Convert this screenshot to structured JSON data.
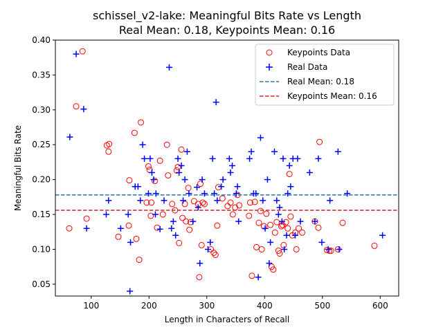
{
  "chart_data": {
    "type": "scatter",
    "title": [
      "schissel_v2-lake: Meaningful Bits Rate vs Length",
      "Real Mean: 0.18, Keypoints Mean: 0.16"
    ],
    "xlabel": "Length in Characters of Recall",
    "ylabel": "Meaningful Bits Rate",
    "xlim": [
      38,
      632
    ],
    "ylim": [
      0.033,
      0.4
    ],
    "xticks": [
      100,
      200,
      300,
      400,
      500,
      600
    ],
    "yticks": [
      0.05,
      0.1,
      0.15,
      0.2,
      0.25,
      0.3,
      0.35,
      0.4
    ],
    "ytick_labels": [
      "0.05",
      "0.10",
      "0.15",
      "0.20",
      "0.25",
      "0.30",
      "0.35",
      "0.40"
    ],
    "legend_position": "top-right",
    "grid": false,
    "series": [
      {
        "name": "Keypoints Data",
        "marker": "open-circle",
        "color": "#ff0000",
        "points": [
          [
            62,
            0.13
          ],
          [
            74,
            0.305
          ],
          [
            85,
            0.384
          ],
          [
            92,
            0.144
          ],
          [
            127,
            0.249
          ],
          [
            130,
            0.24
          ],
          [
            131,
            0.251
          ],
          [
            147,
            0.118
          ],
          [
            165,
            0.134
          ],
          [
            166,
            0.199
          ],
          [
            175,
            0.267
          ],
          [
            178,
            0.115
          ],
          [
            183,
            0.085
          ],
          [
            186,
            0.282
          ],
          [
            196,
            0.167
          ],
          [
            199,
            0.219
          ],
          [
            201,
            0.214
          ],
          [
            203,
            0.148
          ],
          [
            204,
            0.167
          ],
          [
            210,
            0.198
          ],
          [
            214,
            0.131
          ],
          [
            219,
            0.227
          ],
          [
            224,
            0.15
          ],
          [
            231,
            0.25
          ],
          [
            233,
            0.206
          ],
          [
            240,
            0.165
          ],
          [
            245,
            0.156
          ],
          [
            248,
            0.213
          ],
          [
            250,
            0.218
          ],
          [
            252,
            0.109
          ],
          [
            256,
            0.243
          ],
          [
            258,
            0.145
          ],
          [
            262,
            0.165
          ],
          [
            264,
            0.14
          ],
          [
            268,
            0.188
          ],
          [
            270,
            0.128
          ],
          [
            272,
            0.139
          ],
          [
            278,
            0.169
          ],
          [
            285,
            0.165
          ],
          [
            287,
            0.06
          ],
          [
            289,
            0.194
          ],
          [
            291,
            0.106
          ],
          [
            293,
            0.167
          ],
          [
            296,
            0.165
          ],
          [
            307,
            0.1
          ],
          [
            312,
            0.095
          ],
          [
            315,
            0.092
          ],
          [
            318,
            0.134
          ],
          [
            320,
            0.189
          ],
          [
            327,
            0.173
          ],
          [
            336,
            0.162
          ],
          [
            341,
            0.167
          ],
          [
            345,
            0.15
          ],
          [
            349,
            0.16
          ],
          [
            353,
            0.178
          ],
          [
            356,
            0.163
          ],
          [
            373,
            0.148
          ],
          [
            375,
            0.167
          ],
          [
            378,
            0.062
          ],
          [
            383,
            0.168
          ],
          [
            386,
            0.103
          ],
          [
            390,
            0.138
          ],
          [
            393,
            0.155
          ],
          [
            395,
            0.1
          ],
          [
            399,
            0.133
          ],
          [
            403,
            0.151
          ],
          [
            410,
            0.135
          ],
          [
            412,
            0.075
          ],
          [
            415,
            0.071
          ],
          [
            418,
            0.124
          ],
          [
            421,
            0.139
          ],
          [
            424,
            0.098
          ],
          [
            426,
            0.094
          ],
          [
            429,
            0.133
          ],
          [
            431,
            0.135
          ],
          [
            433,
            0.106
          ],
          [
            437,
            0.139
          ],
          [
            440,
            0.13
          ],
          [
            443,
            0.208
          ],
          [
            445,
            0.147
          ],
          [
            448,
            0.12
          ],
          [
            453,
            0.124
          ],
          [
            455,
            0.1
          ],
          [
            459,
            0.13
          ],
          [
            465,
            0.124
          ],
          [
            487,
            0.14
          ],
          [
            493,
            0.131
          ],
          [
            495,
            0.254
          ],
          [
            508,
            0.099
          ],
          [
            512,
            0.098
          ],
          [
            515,
            0.098
          ],
          [
            527,
            0.1
          ],
          [
            535,
            0.138
          ],
          [
            590,
            0.105
          ]
        ]
      },
      {
        "name": "Real Data",
        "marker": "plus",
        "color": "#0000ff",
        "points": [
          [
            63,
            0.261
          ],
          [
            74,
            0.38
          ],
          [
            87,
            0.301
          ],
          [
            92,
            0.13
          ],
          [
            126,
            0.15
          ],
          [
            130,
            0.17
          ],
          [
            151,
            0.13
          ],
          [
            164,
            0.15
          ],
          [
            167,
            0.04
          ],
          [
            168,
            0.11
          ],
          [
            176,
            0.19
          ],
          [
            181,
            0.19
          ],
          [
            185,
            0.17
          ],
          [
            189,
            0.25
          ],
          [
            192,
            0.23
          ],
          [
            199,
            0.18
          ],
          [
            202,
            0.23
          ],
          [
            205,
            0.21
          ],
          [
            208,
            0.2
          ],
          [
            211,
            0.15
          ],
          [
            212,
            0.18
          ],
          [
            219,
            0.129
          ],
          [
            226,
            0.17
          ],
          [
            235,
            0.361
          ],
          [
            239,
            0.13
          ],
          [
            242,
            0.14
          ],
          [
            246,
            0.12
          ],
          [
            250,
            0.23
          ],
          [
            252,
            0.21
          ],
          [
            256,
            0.22
          ],
          [
            259,
            0.17
          ],
          [
            262,
            0.2
          ],
          [
            266,
            0.24
          ],
          [
            269,
            0.18
          ],
          [
            276,
            0.14
          ],
          [
            283,
            0.189
          ],
          [
            285,
            0.16
          ],
          [
            288,
            0.08
          ],
          [
            292,
            0.2
          ],
          [
            296,
            0.18
          ],
          [
            302,
            0.1
          ],
          [
            306,
            0.11
          ],
          [
            310,
            0.23
          ],
          [
            313,
            0.18
          ],
          [
            316,
            0.311
          ],
          [
            318,
            0.17
          ],
          [
            325,
            0.19
          ],
          [
            328,
            0.2
          ],
          [
            339,
            0.23
          ],
          [
            341,
            0.21
          ],
          [
            344,
            0.22
          ],
          [
            351,
            0.18
          ],
          [
            353,
            0.19
          ],
          [
            355,
            0.14
          ],
          [
            374,
            0.23
          ],
          [
            377,
            0.24
          ],
          [
            381,
            0.18
          ],
          [
            385,
            0.18
          ],
          [
            389,
            0.06
          ],
          [
            393,
            0.26
          ],
          [
            397,
            0.17
          ],
          [
            401,
            0.13
          ],
          [
            405,
            0.2
          ],
          [
            408,
            0.08
          ],
          [
            410,
            0.11
          ],
          [
            417,
            0.24
          ],
          [
            421,
            0.17
          ],
          [
            424,
            0.15
          ],
          [
            426,
            0.16
          ],
          [
            430,
            0.14
          ],
          [
            432,
            0.23
          ],
          [
            434,
            0.1
          ],
          [
            438,
            0.12
          ],
          [
            440,
            0.18
          ],
          [
            443,
            0.22
          ],
          [
            445,
            0.19
          ],
          [
            449,
            0.23
          ],
          [
            453,
            0.12
          ],
          [
            457,
            0.23
          ],
          [
            462,
            0.14
          ],
          [
            478,
            0.21
          ],
          [
            487,
            0.14
          ],
          [
            493,
            0.23
          ],
          [
            499,
            0.11
          ],
          [
            510,
            0.1
          ],
          [
            513,
            0.17
          ],
          [
            527,
            0.24
          ],
          [
            529,
            0.1
          ],
          [
            543,
            0.18
          ],
          [
            604,
            0.12
          ]
        ]
      }
    ],
    "reference_lines": [
      {
        "name": "Real Mean: 0.18",
        "y": 0.178,
        "color": "#1f77b4",
        "style": "dashed"
      },
      {
        "name": "Keypoints Mean: 0.16",
        "y": 0.156,
        "color": "#d62728",
        "style": "dashed"
      }
    ]
  }
}
